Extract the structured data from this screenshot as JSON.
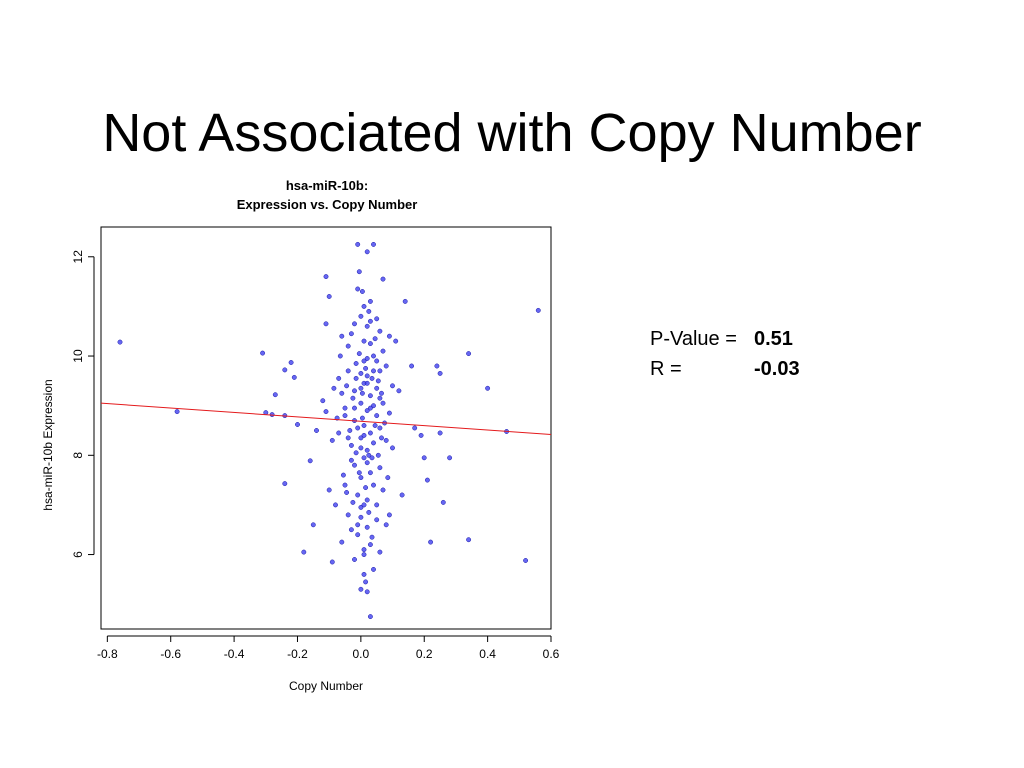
{
  "slide": {
    "title": "Not Associated with Copy Number"
  },
  "stats": {
    "p_label": "P-Value = ",
    "p_value": "0.51",
    "r_label": "R =",
    "r_value": "-0.03"
  },
  "chart_data": {
    "type": "scatter",
    "title_line1": "hsa-miR-10b:",
    "title_line2": "Expression vs. Copy Number",
    "xlabel": "Copy Number",
    "ylabel": "hsa-miR-10b Expression",
    "xlim": [
      -0.82,
      0.6
    ],
    "ylim": [
      4.5,
      12.6
    ],
    "xticks": [
      -0.8,
      -0.6,
      -0.4,
      -0.2,
      0.0,
      0.2,
      0.4,
      0.6
    ],
    "xtick_labels": [
      "-0.8",
      "-0.6",
      "-0.4",
      "-0.2",
      "0.0",
      "0.2",
      "0.4",
      "0.6"
    ],
    "yticks": [
      6,
      8,
      10,
      12
    ],
    "ytick_labels": [
      "6",
      "8",
      "10",
      "12"
    ],
    "point_color": "#3333ee",
    "line_color": "#e41a1c",
    "regression_line": {
      "x": [
        -0.82,
        0.6
      ],
      "y": [
        9.05,
        8.42
      ]
    },
    "grid": false,
    "series": [
      {
        "points": [
          [
            -0.76,
            10.28
          ],
          [
            -0.58,
            8.88
          ],
          [
            -0.31,
            10.06
          ],
          [
            -0.3,
            8.86
          ],
          [
            -0.28,
            8.82
          ],
          [
            -0.27,
            9.22
          ],
          [
            -0.24,
            8.8
          ],
          [
            -0.24,
            9.72
          ],
          [
            -0.24,
            7.43
          ],
          [
            -0.22,
            9.87
          ],
          [
            -0.21,
            9.57
          ],
          [
            -0.2,
            8.62
          ],
          [
            -0.18,
            6.05
          ],
          [
            -0.16,
            7.89
          ],
          [
            -0.15,
            6.6
          ],
          [
            -0.14,
            8.5
          ],
          [
            -0.12,
            9.1
          ],
          [
            -0.11,
            11.6
          ],
          [
            -0.11,
            10.65
          ],
          [
            -0.11,
            8.88
          ],
          [
            -0.1,
            11.2
          ],
          [
            -0.1,
            7.3
          ],
          [
            -0.09,
            8.3
          ],
          [
            -0.09,
            5.85
          ],
          [
            -0.08,
            7.0
          ],
          [
            -0.07,
            8.45
          ],
          [
            -0.07,
            9.55
          ],
          [
            -0.06,
            6.25
          ],
          [
            -0.06,
            10.4
          ],
          [
            -0.05,
            7.4
          ],
          [
            -0.05,
            8.95
          ],
          [
            -0.04,
            10.2
          ],
          [
            -0.04,
            9.7
          ],
          [
            -0.04,
            6.8
          ],
          [
            -0.03,
            8.2
          ],
          [
            -0.03,
            10.45
          ],
          [
            -0.02,
            7.8
          ],
          [
            -0.02,
            5.9
          ],
          [
            -0.02,
            8.7
          ],
          [
            -0.02,
            9.3
          ],
          [
            -0.01,
            11.35
          ],
          [
            -0.01,
            12.25
          ],
          [
            -0.01,
            7.2
          ],
          [
            -0.01,
            6.4
          ],
          [
            0.0,
            10.8
          ],
          [
            0.0,
            9.05
          ],
          [
            0.0,
            8.35
          ],
          [
            0.0,
            7.55
          ],
          [
            0.0,
            6.95
          ],
          [
            0.0,
            5.3
          ],
          [
            0.01,
            11.0
          ],
          [
            0.01,
            9.9
          ],
          [
            0.01,
            9.45
          ],
          [
            0.01,
            8.6
          ],
          [
            0.01,
            7.95
          ],
          [
            0.01,
            6.1
          ],
          [
            0.01,
            5.6
          ],
          [
            0.02,
            12.1
          ],
          [
            0.02,
            10.6
          ],
          [
            0.02,
            9.6
          ],
          [
            0.02,
            8.9
          ],
          [
            0.02,
            8.1
          ],
          [
            0.02,
            7.1
          ],
          [
            0.02,
            6.55
          ],
          [
            0.02,
            5.25
          ],
          [
            0.03,
            11.1
          ],
          [
            0.03,
            10.25
          ],
          [
            0.03,
            9.2
          ],
          [
            0.03,
            8.45
          ],
          [
            0.03,
            7.65
          ],
          [
            0.03,
            6.2
          ],
          [
            0.03,
            4.75
          ],
          [
            0.04,
            12.25
          ],
          [
            0.04,
            10.0
          ],
          [
            0.04,
            9.0
          ],
          [
            0.04,
            8.25
          ],
          [
            0.04,
            7.4
          ],
          [
            0.04,
            5.7
          ],
          [
            0.05,
            10.75
          ],
          [
            0.05,
            9.35
          ],
          [
            0.05,
            8.8
          ],
          [
            0.05,
            7.0
          ],
          [
            0.05,
            6.7
          ],
          [
            0.06,
            10.5
          ],
          [
            0.06,
            9.7
          ],
          [
            0.06,
            8.55
          ],
          [
            0.06,
            7.75
          ],
          [
            0.06,
            6.05
          ],
          [
            0.07,
            11.55
          ],
          [
            0.07,
            10.1
          ],
          [
            0.07,
            9.05
          ],
          [
            0.07,
            7.3
          ],
          [
            0.08,
            9.8
          ],
          [
            0.08,
            8.3
          ],
          [
            0.08,
            6.6
          ],
          [
            0.09,
            10.4
          ],
          [
            0.09,
            8.85
          ],
          [
            0.09,
            6.8
          ],
          [
            0.1,
            9.4
          ],
          [
            0.1,
            8.15
          ],
          [
            0.11,
            10.3
          ],
          [
            0.12,
            9.3
          ],
          [
            0.13,
            7.2
          ],
          [
            0.14,
            11.1
          ],
          [
            0.16,
            9.8
          ],
          [
            0.17,
            8.55
          ],
          [
            0.19,
            8.4
          ],
          [
            0.2,
            7.95
          ],
          [
            0.21,
            7.5
          ],
          [
            0.22,
            6.25
          ],
          [
            0.24,
            9.8
          ],
          [
            0.25,
            9.65
          ],
          [
            0.25,
            8.45
          ],
          [
            0.26,
            7.05
          ],
          [
            0.28,
            7.95
          ],
          [
            0.34,
            10.05
          ],
          [
            0.34,
            6.3
          ],
          [
            0.4,
            9.35
          ],
          [
            0.46,
            8.48
          ],
          [
            0.52,
            5.88
          ],
          [
            0.56,
            10.92
          ],
          [
            -0.015,
            9.85
          ],
          [
            -0.015,
            8.05
          ],
          [
            -0.005,
            10.05
          ],
          [
            -0.005,
            7.65
          ],
          [
            0.005,
            9.25
          ],
          [
            0.005,
            8.75
          ],
          [
            0.015,
            7.35
          ],
          [
            0.015,
            9.75
          ],
          [
            0.025,
            8.0
          ],
          [
            0.025,
            6.85
          ],
          [
            -0.025,
            9.15
          ],
          [
            -0.025,
            7.05
          ],
          [
            0.035,
            9.55
          ],
          [
            0.035,
            6.35
          ],
          [
            -0.035,
            8.5
          ],
          [
            0.045,
            10.35
          ],
          [
            -0.045,
            9.4
          ],
          [
            0.055,
            8.0
          ],
          [
            -0.055,
            7.6
          ],
          [
            0.065,
            9.25
          ],
          [
            -0.065,
            10.0
          ],
          [
            0.075,
            8.65
          ],
          [
            -0.075,
            8.75
          ],
          [
            0.085,
            7.55
          ],
          [
            -0.085,
            9.35
          ],
          [
            0.0,
            9.65
          ],
          [
            0.0,
            8.15
          ],
          [
            0.01,
            10.3
          ],
          [
            0.01,
            7.0
          ],
          [
            -0.01,
            8.55
          ],
          [
            0.02,
            9.95
          ],
          [
            -0.02,
            10.65
          ],
          [
            0.03,
            8.95
          ],
          [
            -0.03,
            7.9
          ],
          [
            0.04,
            9.7
          ],
          [
            -0.04,
            8.35
          ],
          [
            0.05,
            9.9
          ],
          [
            -0.05,
            8.8
          ],
          [
            0.06,
            9.15
          ],
          [
            -0.06,
            9.25
          ],
          [
            0.0,
            6.75
          ],
          [
            0.01,
            6.0
          ],
          [
            0.02,
            7.85
          ],
          [
            -0.01,
            6.6
          ],
          [
            0.03,
            10.7
          ],
          [
            -0.03,
            6.5
          ],
          [
            0.005,
            11.3
          ],
          [
            0.015,
            5.45
          ],
          [
            -0.005,
            11.7
          ],
          [
            0.025,
            10.9
          ],
          [
            0.045,
            8.6
          ],
          [
            -0.015,
            9.55
          ],
          [
            0.035,
            7.95
          ],
          [
            0.055,
            9.5
          ],
          [
            -0.045,
            7.25
          ],
          [
            0.065,
            8.35
          ],
          [
            0.01,
            8.4
          ],
          [
            -0.02,
            8.95
          ],
          [
            0.0,
            9.35
          ],
          [
            0.02,
            9.45
          ]
        ]
      }
    ]
  }
}
